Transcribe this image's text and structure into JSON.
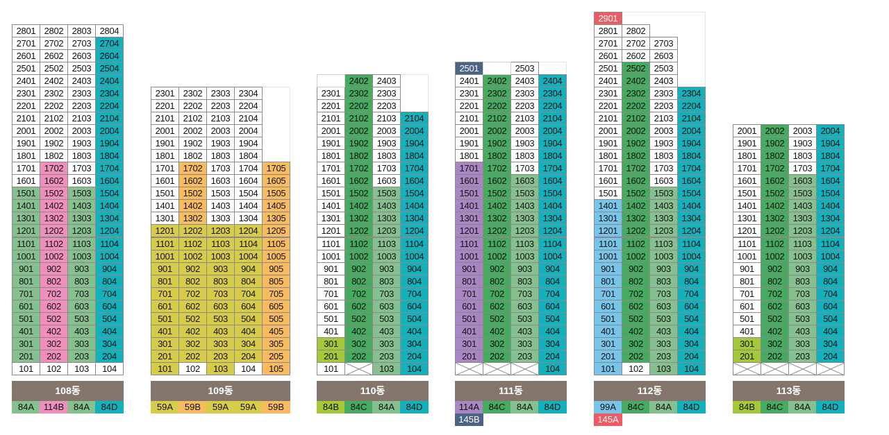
{
  "colors": {
    "white": "#ffffff",
    "green": "#86c08f",
    "dark_green": "#46aa61",
    "teal": "#13b1bc",
    "pink": "#f08ebe",
    "orange": "#f8bb5f",
    "yellow": "#d7cb4a",
    "lime": "#a4c839",
    "purple": "#a886c4",
    "navy": "#4b6485",
    "red": "#ee5b63",
    "sky": "#78c5ec",
    "label_bg": "#85766d"
  },
  "buildings": [
    {
      "name": "108동",
      "top_floor": 28,
      "columns": [
        {
          "line": "01",
          "top": 28,
          "bottom": 1
        },
        {
          "line": "02",
          "top": 28,
          "bottom": 1
        },
        {
          "line": "03",
          "top": 28,
          "bottom": 1
        },
        {
          "line": "04",
          "top": 28,
          "bottom": 1
        }
      ],
      "pilotis": [
        0,
        1,
        2,
        3
      ],
      "white_cells": [
        "2801",
        "2802",
        "2803",
        "2804"
      ],
      "color_rules": [
        {
          "col": 0,
          "from": 2,
          "to": 27,
          "color": "white"
        },
        {
          "col": 0,
          "from": 2,
          "to": 15,
          "color": "green"
        },
        {
          "col": 1,
          "from": 2,
          "to": 27,
          "color": "white"
        },
        {
          "col": 1,
          "from": 2,
          "to": 17,
          "color": "pink"
        },
        {
          "col": 2,
          "from": 2,
          "to": 27,
          "color": "white"
        },
        {
          "col": 2,
          "from": 2,
          "to": 15,
          "color": "green"
        },
        {
          "col": 3,
          "from": 2,
          "to": 27,
          "color": "teal"
        }
      ],
      "legend": [
        {
          "text": "84A",
          "color": "green"
        },
        {
          "text": "114B",
          "color": "pink"
        },
        {
          "text": "84A",
          "color": "green"
        },
        {
          "text": "84D",
          "color": "teal"
        }
      ]
    },
    {
      "name": "109동",
      "columns": [
        {
          "line": "01",
          "top": 23,
          "bottom": 1
        },
        {
          "line": "02",
          "top": 23,
          "bottom": 1
        },
        {
          "line": "03",
          "top": 23,
          "bottom": 1
        },
        {
          "line": "04",
          "top": 23,
          "bottom": 1
        },
        {
          "line": "05",
          "top": 17,
          "bottom": 1
        }
      ],
      "pilotis": [
        1,
        3
      ],
      "color_rules": [
        {
          "col": 0,
          "from": 1,
          "to": 23,
          "color": "white"
        },
        {
          "col": 0,
          "from": 1,
          "to": 12,
          "color": "yellow"
        },
        {
          "col": 1,
          "from": 1,
          "to": 23,
          "color": "white"
        },
        {
          "col": 1,
          "from": 2,
          "to": 17,
          "color": "orange"
        },
        {
          "col": 1,
          "from": 2,
          "to": 12,
          "color": "yellow"
        },
        {
          "col": 2,
          "from": 1,
          "to": 23,
          "color": "white"
        },
        {
          "col": 2,
          "from": 1,
          "to": 12,
          "color": "yellow"
        },
        {
          "col": 3,
          "from": 1,
          "to": 23,
          "color": "white"
        },
        {
          "col": 3,
          "from": 2,
          "to": 12,
          "color": "yellow"
        },
        {
          "col": 4,
          "from": 1,
          "to": 17,
          "color": "orange"
        }
      ],
      "legend": [
        {
          "text": "59A",
          "color": "yellow"
        },
        {
          "text": "59B",
          "color": "orange"
        },
        {
          "text": "59A",
          "color": "yellow"
        },
        {
          "text": "59A",
          "color": "yellow"
        },
        {
          "text": "59B",
          "color": "orange"
        }
      ]
    },
    {
      "name": "110동",
      "columns": [
        {
          "line": "01",
          "top": 23,
          "bottom": 1
        },
        {
          "line": "02",
          "top": 24,
          "bottom": 2
        },
        {
          "line": "03",
          "top": 24,
          "bottom": 1
        },
        {
          "line": "04",
          "top": 21,
          "bottom": 1
        }
      ],
      "pilotis": [
        1
      ],
      "empty_top": [
        {
          "col": 0,
          "floor": 24
        }
      ],
      "color_rules": [
        {
          "col": 0,
          "from": 1,
          "to": 23,
          "color": "white"
        },
        {
          "col": 0,
          "from": 2,
          "to": 3,
          "color": "lime"
        },
        {
          "col": 1,
          "from": 2,
          "to": 24,
          "color": "dark_green"
        },
        {
          "col": 2,
          "from": 1,
          "to": 24,
          "color": "white"
        },
        {
          "col": 2,
          "from": 1,
          "to": 15,
          "color": "green"
        },
        {
          "col": 3,
          "from": 1,
          "to": 21,
          "color": "teal"
        }
      ],
      "legend": [
        {
          "text": "84B",
          "color": "lime"
        },
        {
          "text": "84C",
          "color": "dark_green"
        },
        {
          "text": "84A",
          "color": "green"
        },
        {
          "text": "84D",
          "color": "teal"
        }
      ]
    },
    {
      "name": "111동",
      "columns": [
        {
          "line": "01",
          "top": 25,
          "bottom": 2
        },
        {
          "line": "02",
          "top": 24,
          "bottom": 2
        },
        {
          "line": "03",
          "top": 25,
          "bottom": 2
        },
        {
          "line": "04",
          "top": 24,
          "bottom": 1
        }
      ],
      "pilotis": [
        0,
        1,
        2
      ],
      "empty_top": [
        {
          "col": 1,
          "floor": 25
        }
      ],
      "color_rules": [
        {
          "col": 0,
          "from": 2,
          "to": 24,
          "color": "white"
        },
        {
          "col": 0,
          "from": 2,
          "to": 17,
          "color": "purple"
        },
        {
          "col": 0,
          "from": 25,
          "to": 25,
          "color": "navy"
        },
        {
          "col": 1,
          "from": 2,
          "to": 24,
          "color": "dark_green"
        },
        {
          "col": 2,
          "from": 2,
          "to": 25,
          "color": "white"
        },
        {
          "col": 2,
          "from": 2,
          "to": 16,
          "color": "green"
        },
        {
          "col": 3,
          "from": 1,
          "to": 24,
          "color": "teal"
        }
      ],
      "legend": [
        {
          "text": "114A",
          "color": "purple"
        },
        {
          "text": "84C",
          "color": "dark_green"
        },
        {
          "text": "84A",
          "color": "green"
        },
        {
          "text": "84D",
          "color": "teal"
        }
      ],
      "legend_extra": [
        {
          "text": "145B",
          "color": "navy",
          "col": 0
        }
      ]
    },
    {
      "name": "112동",
      "columns": [
        {
          "line": "01",
          "top": 29,
          "bottom": 1
        },
        {
          "line": "02",
          "top": 28,
          "bottom": 1
        },
        {
          "line": "03",
          "top": 27,
          "bottom": 1
        },
        {
          "line": "04",
          "top": 23,
          "bottom": 1
        }
      ],
      "pilotis": [
        1
      ],
      "color_rules": [
        {
          "col": 0,
          "from": 1,
          "to": 28,
          "color": "white"
        },
        {
          "col": 0,
          "from": 1,
          "to": 14,
          "color": "sky"
        },
        {
          "col": 0,
          "from": 29,
          "to": 29,
          "color": "red"
        },
        {
          "col": 1,
          "from": 2,
          "to": 28,
          "color": "white"
        },
        {
          "col": 1,
          "from": 2,
          "to": 25,
          "color": "dark_green"
        },
        {
          "col": 2,
          "from": 1,
          "to": 27,
          "color": "white"
        },
        {
          "col": 2,
          "from": 1,
          "to": 15,
          "color": "green"
        },
        {
          "col": 3,
          "from": 1,
          "to": 23,
          "color": "teal"
        }
      ],
      "legend": [
        {
          "text": "99A",
          "color": "sky"
        },
        {
          "text": "84C",
          "color": "dark_green"
        },
        {
          "text": "84A",
          "color": "green"
        },
        {
          "text": "84D",
          "color": "teal"
        }
      ],
      "legend_extra": [
        {
          "text": "145A",
          "color": "red",
          "col": 0
        }
      ]
    },
    {
      "name": "113동",
      "columns": [
        {
          "line": "01",
          "top": 20,
          "bottom": 2
        },
        {
          "line": "02",
          "top": 20,
          "bottom": 2
        },
        {
          "line": "03",
          "top": 20,
          "bottom": 2
        },
        {
          "line": "04",
          "top": 20,
          "bottom": 2
        }
      ],
      "pilotis": [
        0,
        1,
        2,
        3
      ],
      "color_rules": [
        {
          "col": 0,
          "from": 2,
          "to": 20,
          "color": "white"
        },
        {
          "col": 0,
          "from": 2,
          "to": 3,
          "color": "lime"
        },
        {
          "col": 1,
          "from": 2,
          "to": 20,
          "color": "dark_green"
        },
        {
          "col": 2,
          "from": 2,
          "to": 20,
          "color": "white"
        },
        {
          "col": 2,
          "from": 2,
          "to": 16,
          "color": "green"
        },
        {
          "col": 3,
          "from": 2,
          "to": 20,
          "color": "teal"
        }
      ],
      "legend": [
        {
          "text": "84B",
          "color": "lime"
        },
        {
          "text": "84C",
          "color": "dark_green"
        },
        {
          "text": "84A",
          "color": "green"
        },
        {
          "text": "84D",
          "color": "teal"
        }
      ]
    }
  ]
}
